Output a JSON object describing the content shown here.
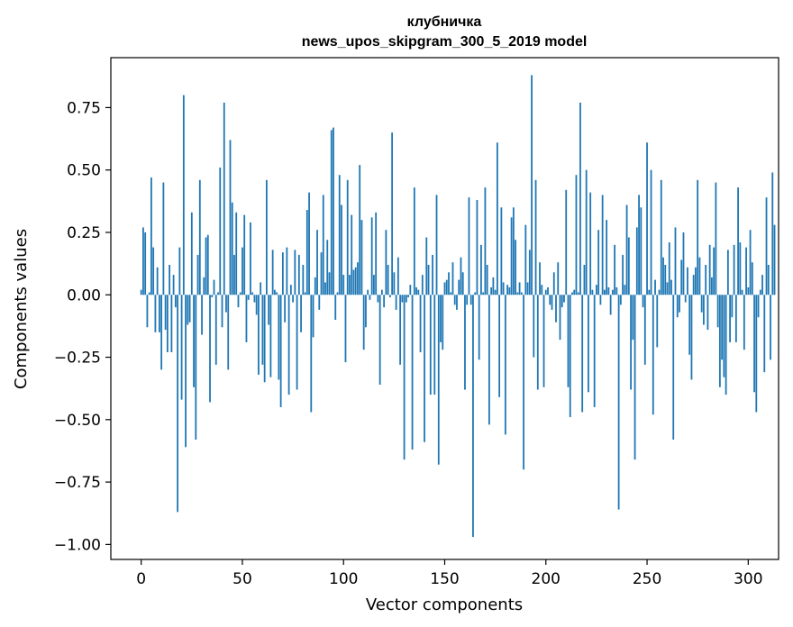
{
  "chart_data": {
    "type": "bar",
    "title": "клубничка",
    "subtitle": "news_upos_skipgram_300_5_2019 model",
    "xlabel": "Vector components",
    "ylabel": "Components values",
    "xlim": [
      -15,
      315
    ],
    "ylim": [
      -1.06,
      0.95
    ],
    "x_ticks": [
      0,
      50,
      100,
      150,
      200,
      250,
      300
    ],
    "x_tick_labels": [
      "0",
      "50",
      "100",
      "150",
      "200",
      "250",
      "300"
    ],
    "y_ticks": [
      0.75,
      0.5,
      0.25,
      0.0,
      -0.25,
      -0.5,
      -0.75,
      -1.0
    ],
    "y_tick_labels": [
      "0.75",
      "0.50",
      "0.25",
      "0.00",
      "−0.25",
      "−0.50",
      "−0.75",
      "−1.00"
    ],
    "bar_color": "#1f77b4",
    "grid": false,
    "values": [
      0.02,
      0.27,
      0.25,
      -0.13,
      0.01,
      0.47,
      0.19,
      -0.15,
      0.11,
      -0.15,
      -0.3,
      0.45,
      -0.14,
      -0.23,
      0.12,
      -0.23,
      0.08,
      -0.05,
      -0.87,
      0.19,
      -0.42,
      0.8,
      -0.61,
      -0.12,
      -0.11,
      0.33,
      -0.37,
      -0.58,
      0.16,
      0.46,
      -0.16,
      0.07,
      0.23,
      0.24,
      -0.43,
      -0.01,
      0.06,
      -0.28,
      0.01,
      0.51,
      -0.13,
      0.77,
      -0.07,
      -0.3,
      0.62,
      0.37,
      0.16,
      0.33,
      -0.05,
      0.01,
      0.19,
      0.32,
      -0.19,
      -0.02,
      0.29,
      0.01,
      -0.03,
      -0.08,
      -0.32,
      0.05,
      -0.28,
      -0.35,
      0.46,
      -0.12,
      -0.33,
      0.18,
      0.02,
      0.01,
      -0.34,
      -0.45,
      0.17,
      -0.11,
      0.19,
      -0.4,
      0.04,
      -0.03,
      0.18,
      -0.38,
      0.16,
      -0.15,
      0.12,
      0.01,
      0.34,
      0.41,
      -0.47,
      -0.17,
      0.07,
      0.26,
      -0.06,
      0.17,
      0.4,
      0.05,
      0.22,
      0.09,
      0.66,
      0.67,
      -0.1,
      0.01,
      0.48,
      0.36,
      0.08,
      -0.27,
      0.46,
      0.08,
      0.32,
      0.1,
      0.11,
      0.13,
      0.52,
      0.3,
      -0.22,
      -0.13,
      0.02,
      -0.02,
      0.31,
      0.08,
      0.33,
      -0.03,
      -0.36,
      0.02,
      -0.05,
      0.26,
      0.12,
      -0.01,
      0.65,
      0.09,
      -0.06,
      0.15,
      -0.28,
      -0.03,
      -0.66,
      -0.03,
      -0.01,
      0.04,
      -0.62,
      0.43,
      0.03,
      0.02,
      -0.23,
      0.08,
      -0.59,
      0.23,
      0.12,
      -0.4,
      0.16,
      -0.4,
      0.4,
      -0.68,
      -0.19,
      -0.22,
      0.05,
      0.06,
      0.09,
      0.01,
      0.13,
      -0.04,
      -0.06,
      0.06,
      0.15,
      0.09,
      -0.38,
      -0.04,
      0.39,
      -0.04,
      -0.97,
      0.01,
      0.38,
      -0.26,
      0.2,
      0.01,
      0.43,
      0.12,
      -0.52,
      0.03,
      0.07,
      0.02,
      0.61,
      -0.41,
      0.35,
      0.05,
      -0.56,
      0.04,
      0.03,
      0.31,
      0.35,
      0.22,
      0.01,
      0.05,
      0.01,
      -0.7,
      0.28,
      0.05,
      0.18,
      0.88,
      -0.25,
      0.46,
      -0.38,
      0.13,
      0.04,
      -0.37,
      0.02,
      0.03,
      -0.04,
      -0.06,
      0.09,
      -0.11,
      0.13,
      -0.18,
      -0.05,
      -0.03,
      0.42,
      -0.37,
      -0.49,
      0.01,
      0.02,
      0.48,
      0.01,
      0.77,
      -0.47,
      0.12,
      0.5,
      -0.39,
      0.41,
      0.02,
      -0.45,
      0.04,
      0.26,
      -0.04,
      0.4,
      0.02,
      0.3,
      0.03,
      -0.08,
      0.02,
      0.2,
      0.03,
      -0.86,
      -0.04,
      0.16,
      0.04,
      0.36,
      0.23,
      -0.38,
      -0.18,
      -0.66,
      0.27,
      0.4,
      0.35,
      -0.05,
      -0.28,
      0.61,
      0.02,
      0.5,
      -0.48,
      0.06,
      -0.21,
      0.02,
      0.46,
      0.15,
      0.12,
      0.05,
      0.21,
      0.06,
      -0.58,
      0.27,
      -0.09,
      -0.07,
      0.14,
      0.25,
      -0.03,
      0.11,
      -0.24,
      -0.34,
      0.08,
      0.11,
      0.46,
      0.15,
      -0.07,
      -0.12,
      0.12,
      -0.14,
      0.2,
      0.07,
      0.19,
      0.45,
      -0.13,
      -0.37,
      -0.26,
      -0.33,
      -0.4,
      0.18,
      -0.19,
      -0.09,
      0.2,
      -0.19,
      0.43,
      0.21,
      0.02,
      -0.22,
      0.19,
      0.03,
      0.26,
      0.13,
      -0.39,
      -0.47,
      -0.09,
      0.02,
      0.08,
      -0.31,
      0.39,
      0.12,
      -0.26,
      0.49,
      0.28
    ]
  }
}
